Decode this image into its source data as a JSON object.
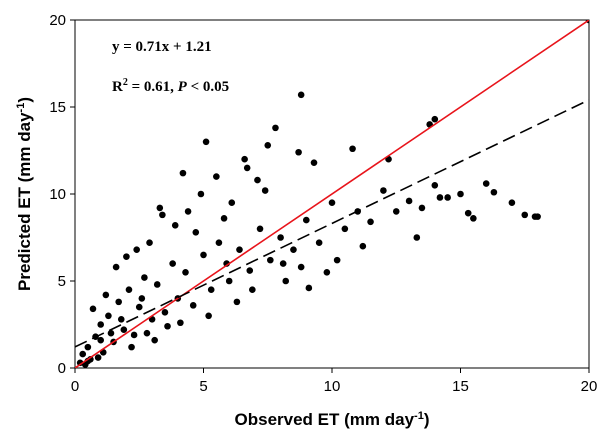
{
  "chart_data": {
    "type": "scatter",
    "xlabel": "Observed ET (mm  day",
    "xlabel_sup": "-1",
    "xlabel_end": ")",
    "ylabel": "Predicted ET (mm day",
    "ylabel_sup": "-1",
    "ylabel_end": ")",
    "xlim": [
      0,
      20
    ],
    "ylim": [
      0,
      20
    ],
    "xticks": [
      "0",
      "5",
      "10",
      "15",
      "20"
    ],
    "yticks": [
      "0",
      "5",
      "10",
      "15",
      "20"
    ],
    "grid": false,
    "annotations": {
      "equation": "y = 0.71x + 1.21",
      "r2_label": "R",
      "r2_sup": "2",
      "r2_value": " = 0.61, ",
      "p_label": "P",
      "p_value": " < 0.05"
    },
    "lines": [
      {
        "kind": "one-to-one",
        "slope": 1,
        "intercept": 0,
        "color": "#e8141b",
        "style": "solid"
      },
      {
        "kind": "regression",
        "slope": 0.71,
        "intercept": 1.21,
        "color": "#000000",
        "style": "dashed"
      }
    ],
    "points_color": "#000000",
    "series": [
      {
        "x": [
          0.2,
          0.3,
          0.5,
          0.6,
          0.8,
          1.0,
          1.1,
          1.3,
          1.5,
          1.7,
          1.9,
          2.1,
          2.3,
          2.5,
          2.7,
          3.0,
          3.2,
          3.5,
          3.8,
          4.0,
          4.3,
          4.6,
          5.0,
          5.3,
          5.6,
          6.0,
          6.4,
          6.8,
          7.2,
          7.6,
          8.0,
          8.5,
          9.0,
          9.5,
          10.0,
          10.5,
          11.0,
          11.5,
          12.0,
          12.5,
          13.0,
          13.5,
          14.0,
          14.5,
          15.0,
          15.5,
          16.0,
          17.0,
          17.5,
          18.0,
          0.4,
          0.9,
          1.4,
          1.8,
          2.2,
          2.6,
          3.1,
          3.6,
          4.1,
          4.7,
          5.2,
          5.8,
          6.3,
          6.9,
          7.4,
          8.2,
          8.8,
          9.3,
          10.2,
          11.2,
          12.2,
          13.3,
          14.2,
          1.2,
          2.0,
          2.8,
          3.4,
          4.4,
          5.5,
          6.6,
          7.8,
          8.7,
          9.8,
          10.8,
          0.7,
          1.6,
          2.4,
          3.3,
          4.2,
          5.1,
          6.1,
          7.1,
          8.1,
          9.1,
          0.5,
          1.0,
          2.9,
          3.9,
          4.9,
          5.9,
          6.7,
          7.5,
          14.0,
          13.8,
          8.8,
          17.9,
          15.3,
          16.3,
          20.0
        ],
        "y": [
          0.3,
          0.8,
          1.2,
          0.5,
          1.8,
          2.5,
          0.9,
          3.0,
          1.5,
          3.8,
          2.2,
          4.5,
          1.9,
          3.5,
          5.2,
          2.8,
          4.8,
          3.2,
          6.0,
          4.0,
          5.5,
          3.6,
          6.5,
          4.5,
          7.2,
          5.0,
          6.8,
          5.6,
          8.0,
          6.2,
          7.5,
          6.8,
          8.5,
          7.2,
          9.5,
          8.0,
          9.0,
          8.4,
          10.2,
          9.0,
          9.6,
          9.2,
          10.5,
          9.8,
          10.0,
          8.6,
          10.6,
          9.5,
          8.8,
          8.7,
          0.2,
          0.6,
          2.0,
          2.8,
          1.2,
          4.0,
          1.6,
          2.4,
          2.6,
          7.8,
          3.0,
          8.6,
          3.8,
          4.5,
          10.2,
          5.0,
          5.8,
          11.8,
          6.2,
          7.0,
          12.0,
          7.5,
          9.8,
          4.2,
          6.4,
          2.0,
          8.8,
          9.0,
          11.0,
          12.0,
          13.8,
          12.4,
          5.5,
          12.6,
          3.4,
          5.8,
          6.8,
          9.2,
          11.2,
          13.0,
          9.5,
          10.8,
          6.0,
          4.6,
          0.4,
          1.6,
          7.2,
          8.2,
          10.0,
          6.0,
          11.5,
          12.8,
          14.3,
          14.0,
          15.7,
          8.7,
          8.9,
          10.1,
          20.0
        ]
      }
    ]
  }
}
